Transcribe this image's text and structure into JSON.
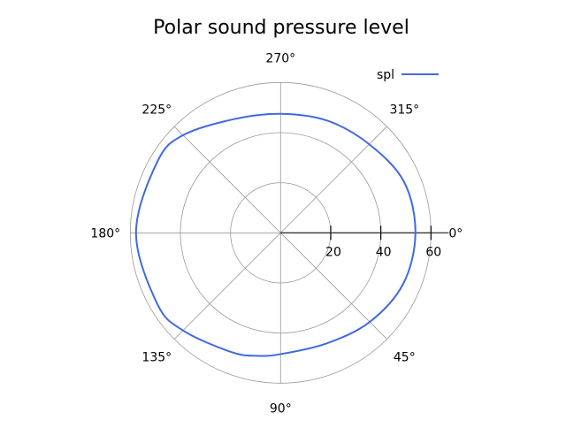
{
  "chart_data": {
    "type": "line",
    "projection": "polar",
    "title": "Polar sound pressure level",
    "theta_direction": "clockwise",
    "theta_zero": "east",
    "theta_ticks": [
      "0°",
      "45°",
      "90°",
      "135°",
      "180°",
      "225°",
      "270°",
      "315°"
    ],
    "r_ticks": [
      "20",
      "40",
      "60"
    ],
    "rlim": [
      0,
      60
    ],
    "grid": true,
    "legend": "top-right",
    "series": [
      {
        "name": "spl",
        "color": "#4169e1",
        "theta_deg": [
          0,
          22.5,
          45,
          67.5,
          90,
          101,
          112.5,
          135,
          150,
          180,
          210,
          225,
          248,
          270,
          292.5,
          315,
          337.5,
          360
        ],
        "r": [
          53.8,
          53,
          50.3,
          47.8,
          48.4,
          50,
          51.5,
          55.1,
          56.8,
          57.7,
          56.8,
          55.1,
          49,
          47.5,
          48.5,
          50,
          53.3,
          53.8
        ]
      }
    ]
  }
}
